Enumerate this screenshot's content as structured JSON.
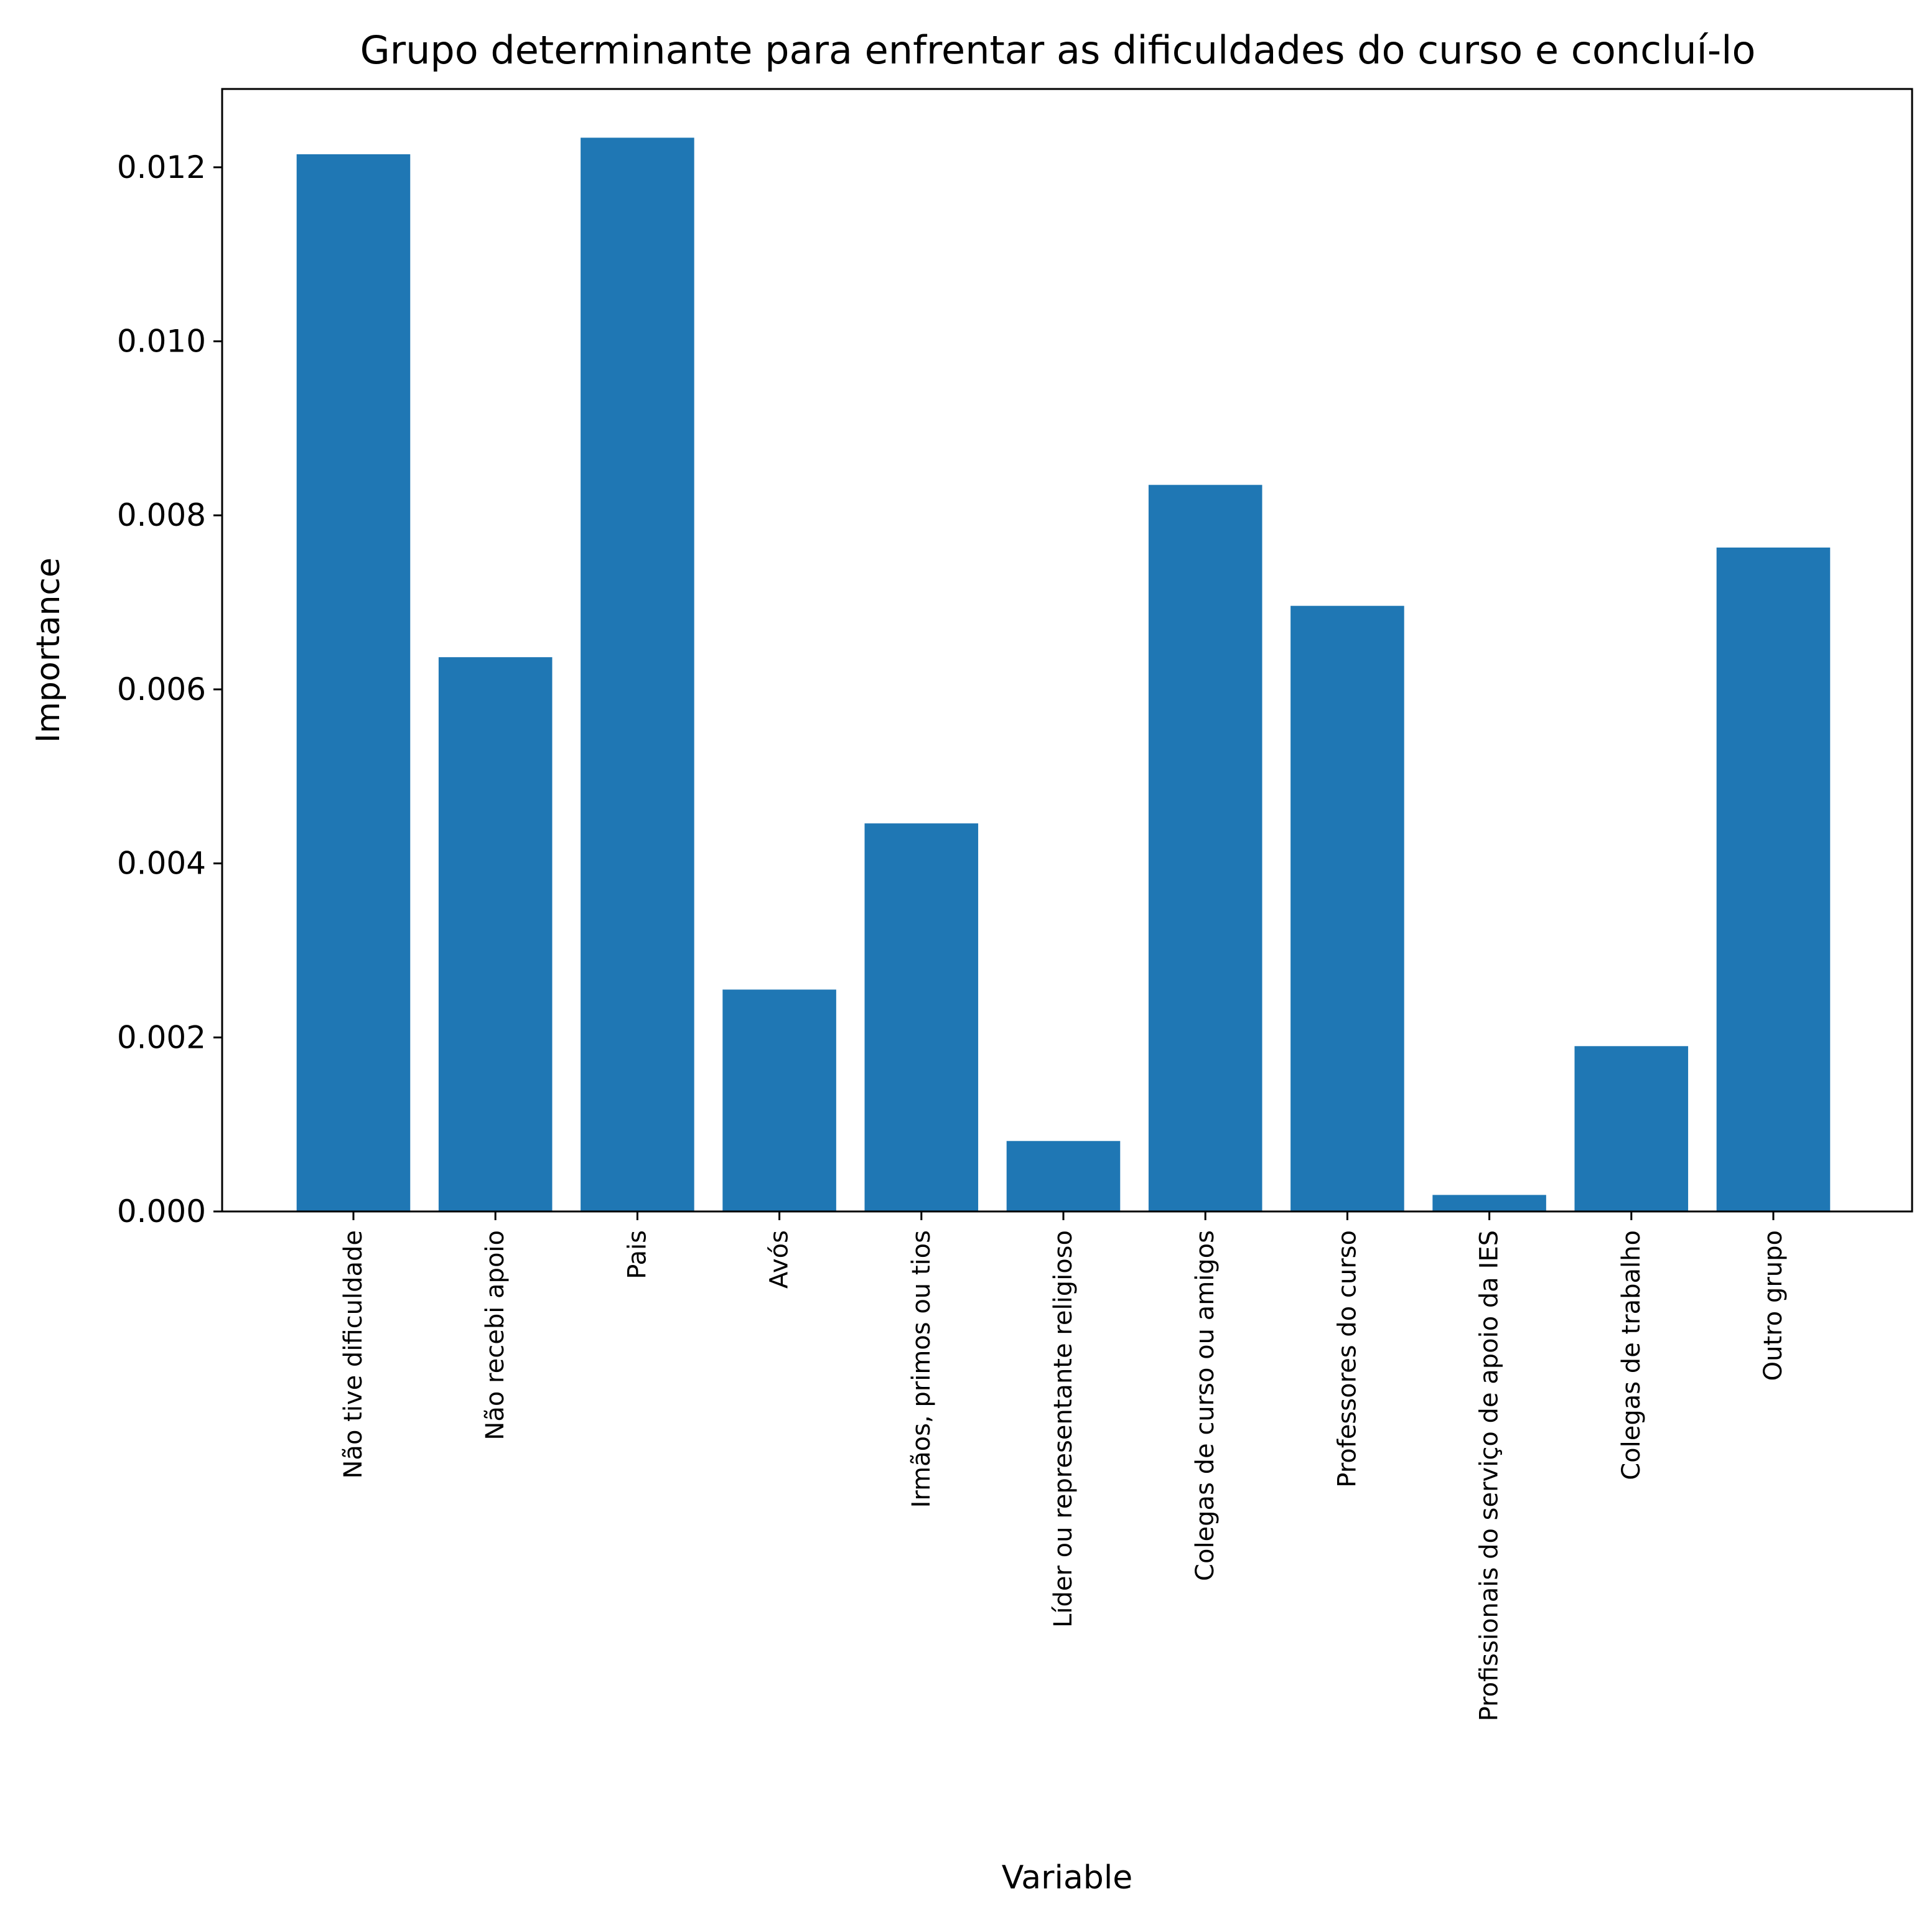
{
  "chart_data": {
    "type": "bar",
    "title": "Grupo determinante para enfrentar as dificuldades do curso e concluí-lo",
    "xlabel": "Variable",
    "ylabel": "Importance",
    "categories": [
      "Não tive dificuldade",
      "Não recebi apoio",
      "Pais",
      "Avós",
      "Irmãos, primos ou tios",
      "Líder ou representante religioso",
      "Colegas de curso ou amigos",
      "Professores do curso",
      "Profissionais do serviço de apoio da IES",
      "Colegas de trabalho",
      "Outro grupo"
    ],
    "values": [
      0.01215,
      0.00637,
      0.01234,
      0.00255,
      0.00446,
      0.00081,
      0.00835,
      0.00696,
      0.00019,
      0.0019,
      0.00763
    ],
    "ylim": [
      0,
      0.0129
    ],
    "yticks": [
      "0.000",
      "0.002",
      "0.004",
      "0.006",
      "0.008",
      "0.010",
      "0.012"
    ],
    "grid": false,
    "bar_color": "#1f77b4"
  }
}
